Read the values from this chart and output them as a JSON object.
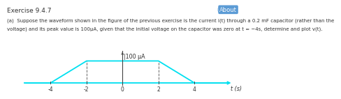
{
  "title": "Exercise 9.4.7",
  "about_label": "About",
  "desc_line1": "(a)  Suppose the waveform shown in the figure of the previous exercise is the current i(t) through a 0.2 mF capacitor (rather than the",
  "desc_line2": "voltage) and its peak value is 100μA, given that the initial voltage on the capacitor was zero at t = −4s, determine and plot v(t).",
  "waveform_x": [
    -5.5,
    -4,
    -2,
    2,
    4,
    5.8
  ],
  "waveform_y": [
    0,
    0,
    1,
    1,
    0,
    0
  ],
  "peak_label": "|100 μA",
  "xlabel": "t (s)",
  "xtick_vals": [
    -4,
    -2,
    0,
    2,
    4
  ],
  "xtick_labels": [
    "-4",
    "-2",
    "0",
    "2",
    "4"
  ],
  "xlim": [
    -5.5,
    6.2
  ],
  "ylim": [
    -0.32,
    1.55
  ],
  "line_color": "#00e0f0",
  "axis_color": "#444444",
  "dashed_color": "#666666",
  "text_color": "#333333",
  "bg_color": "#ffffff",
  "title_fontsize": 6.5,
  "about_fontsize": 6.0,
  "desc_fontsize": 5.0,
  "peak_fontsize": 5.8,
  "tick_fontsize": 5.5,
  "xlabel_fontsize": 5.8
}
